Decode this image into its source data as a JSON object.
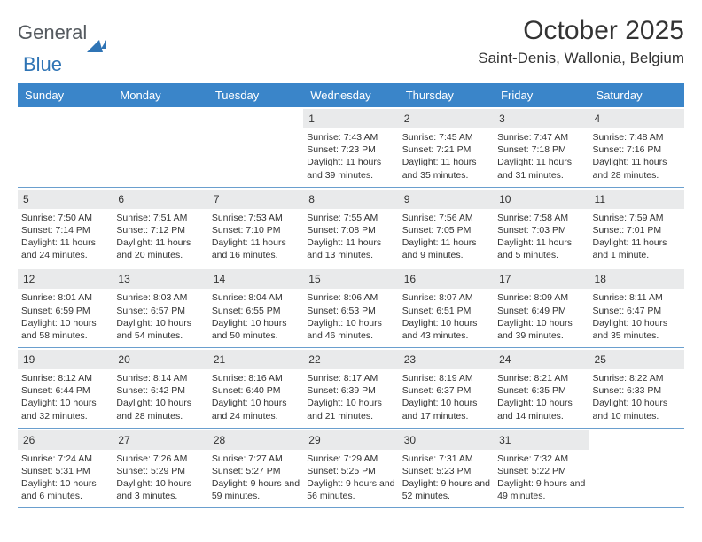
{
  "logo": {
    "word1": "General",
    "word2": "Blue"
  },
  "header": {
    "title": "October 2025",
    "location": "Saint-Denis, Wallonia, Belgium"
  },
  "dayHeaders": [
    "Sunday",
    "Monday",
    "Tuesday",
    "Wednesday",
    "Thursday",
    "Friday",
    "Saturday"
  ],
  "colors": {
    "headerBg": "#3a85c9",
    "rowDividers": "#6a9fce",
    "dayNumBg": "#e9eaeb",
    "text": "#333333",
    "logoGray": "#555a5f",
    "logoBlue": "#2f74b5",
    "background": "#ffffff"
  },
  "typography": {
    "titleSize": 30,
    "locationSize": 17,
    "dayHeaderSize": 13,
    "dayNumSize": 12,
    "infoSize": 10.5,
    "family": "Arial"
  },
  "weeks": [
    [
      {
        "n": "",
        "sr": "",
        "ss": "",
        "dl": ""
      },
      {
        "n": "",
        "sr": "",
        "ss": "",
        "dl": ""
      },
      {
        "n": "",
        "sr": "",
        "ss": "",
        "dl": ""
      },
      {
        "n": "1",
        "sr": "Sunrise: 7:43 AM",
        "ss": "Sunset: 7:23 PM",
        "dl": "Daylight: 11 hours and 39 minutes."
      },
      {
        "n": "2",
        "sr": "Sunrise: 7:45 AM",
        "ss": "Sunset: 7:21 PM",
        "dl": "Daylight: 11 hours and 35 minutes."
      },
      {
        "n": "3",
        "sr": "Sunrise: 7:47 AM",
        "ss": "Sunset: 7:18 PM",
        "dl": "Daylight: 11 hours and 31 minutes."
      },
      {
        "n": "4",
        "sr": "Sunrise: 7:48 AM",
        "ss": "Sunset: 7:16 PM",
        "dl": "Daylight: 11 hours and 28 minutes."
      }
    ],
    [
      {
        "n": "5",
        "sr": "Sunrise: 7:50 AM",
        "ss": "Sunset: 7:14 PM",
        "dl": "Daylight: 11 hours and 24 minutes."
      },
      {
        "n": "6",
        "sr": "Sunrise: 7:51 AM",
        "ss": "Sunset: 7:12 PM",
        "dl": "Daylight: 11 hours and 20 minutes."
      },
      {
        "n": "7",
        "sr": "Sunrise: 7:53 AM",
        "ss": "Sunset: 7:10 PM",
        "dl": "Daylight: 11 hours and 16 minutes."
      },
      {
        "n": "8",
        "sr": "Sunrise: 7:55 AM",
        "ss": "Sunset: 7:08 PM",
        "dl": "Daylight: 11 hours and 13 minutes."
      },
      {
        "n": "9",
        "sr": "Sunrise: 7:56 AM",
        "ss": "Sunset: 7:05 PM",
        "dl": "Daylight: 11 hours and 9 minutes."
      },
      {
        "n": "10",
        "sr": "Sunrise: 7:58 AM",
        "ss": "Sunset: 7:03 PM",
        "dl": "Daylight: 11 hours and 5 minutes."
      },
      {
        "n": "11",
        "sr": "Sunrise: 7:59 AM",
        "ss": "Sunset: 7:01 PM",
        "dl": "Daylight: 11 hours and 1 minute."
      }
    ],
    [
      {
        "n": "12",
        "sr": "Sunrise: 8:01 AM",
        "ss": "Sunset: 6:59 PM",
        "dl": "Daylight: 10 hours and 58 minutes."
      },
      {
        "n": "13",
        "sr": "Sunrise: 8:03 AM",
        "ss": "Sunset: 6:57 PM",
        "dl": "Daylight: 10 hours and 54 minutes."
      },
      {
        "n": "14",
        "sr": "Sunrise: 8:04 AM",
        "ss": "Sunset: 6:55 PM",
        "dl": "Daylight: 10 hours and 50 minutes."
      },
      {
        "n": "15",
        "sr": "Sunrise: 8:06 AM",
        "ss": "Sunset: 6:53 PM",
        "dl": "Daylight: 10 hours and 46 minutes."
      },
      {
        "n": "16",
        "sr": "Sunrise: 8:07 AM",
        "ss": "Sunset: 6:51 PM",
        "dl": "Daylight: 10 hours and 43 minutes."
      },
      {
        "n": "17",
        "sr": "Sunrise: 8:09 AM",
        "ss": "Sunset: 6:49 PM",
        "dl": "Daylight: 10 hours and 39 minutes."
      },
      {
        "n": "18",
        "sr": "Sunrise: 8:11 AM",
        "ss": "Sunset: 6:47 PM",
        "dl": "Daylight: 10 hours and 35 minutes."
      }
    ],
    [
      {
        "n": "19",
        "sr": "Sunrise: 8:12 AM",
        "ss": "Sunset: 6:44 PM",
        "dl": "Daylight: 10 hours and 32 minutes."
      },
      {
        "n": "20",
        "sr": "Sunrise: 8:14 AM",
        "ss": "Sunset: 6:42 PM",
        "dl": "Daylight: 10 hours and 28 minutes."
      },
      {
        "n": "21",
        "sr": "Sunrise: 8:16 AM",
        "ss": "Sunset: 6:40 PM",
        "dl": "Daylight: 10 hours and 24 minutes."
      },
      {
        "n": "22",
        "sr": "Sunrise: 8:17 AM",
        "ss": "Sunset: 6:39 PM",
        "dl": "Daylight: 10 hours and 21 minutes."
      },
      {
        "n": "23",
        "sr": "Sunrise: 8:19 AM",
        "ss": "Sunset: 6:37 PM",
        "dl": "Daylight: 10 hours and 17 minutes."
      },
      {
        "n": "24",
        "sr": "Sunrise: 8:21 AM",
        "ss": "Sunset: 6:35 PM",
        "dl": "Daylight: 10 hours and 14 minutes."
      },
      {
        "n": "25",
        "sr": "Sunrise: 8:22 AM",
        "ss": "Sunset: 6:33 PM",
        "dl": "Daylight: 10 hours and 10 minutes."
      }
    ],
    [
      {
        "n": "26",
        "sr": "Sunrise: 7:24 AM",
        "ss": "Sunset: 5:31 PM",
        "dl": "Daylight: 10 hours and 6 minutes."
      },
      {
        "n": "27",
        "sr": "Sunrise: 7:26 AM",
        "ss": "Sunset: 5:29 PM",
        "dl": "Daylight: 10 hours and 3 minutes."
      },
      {
        "n": "28",
        "sr": "Sunrise: 7:27 AM",
        "ss": "Sunset: 5:27 PM",
        "dl": "Daylight: 9 hours and 59 minutes."
      },
      {
        "n": "29",
        "sr": "Sunrise: 7:29 AM",
        "ss": "Sunset: 5:25 PM",
        "dl": "Daylight: 9 hours and 56 minutes."
      },
      {
        "n": "30",
        "sr": "Sunrise: 7:31 AM",
        "ss": "Sunset: 5:23 PM",
        "dl": "Daylight: 9 hours and 52 minutes."
      },
      {
        "n": "31",
        "sr": "Sunrise: 7:32 AM",
        "ss": "Sunset: 5:22 PM",
        "dl": "Daylight: 9 hours and 49 minutes."
      },
      {
        "n": "",
        "sr": "",
        "ss": "",
        "dl": ""
      }
    ]
  ]
}
